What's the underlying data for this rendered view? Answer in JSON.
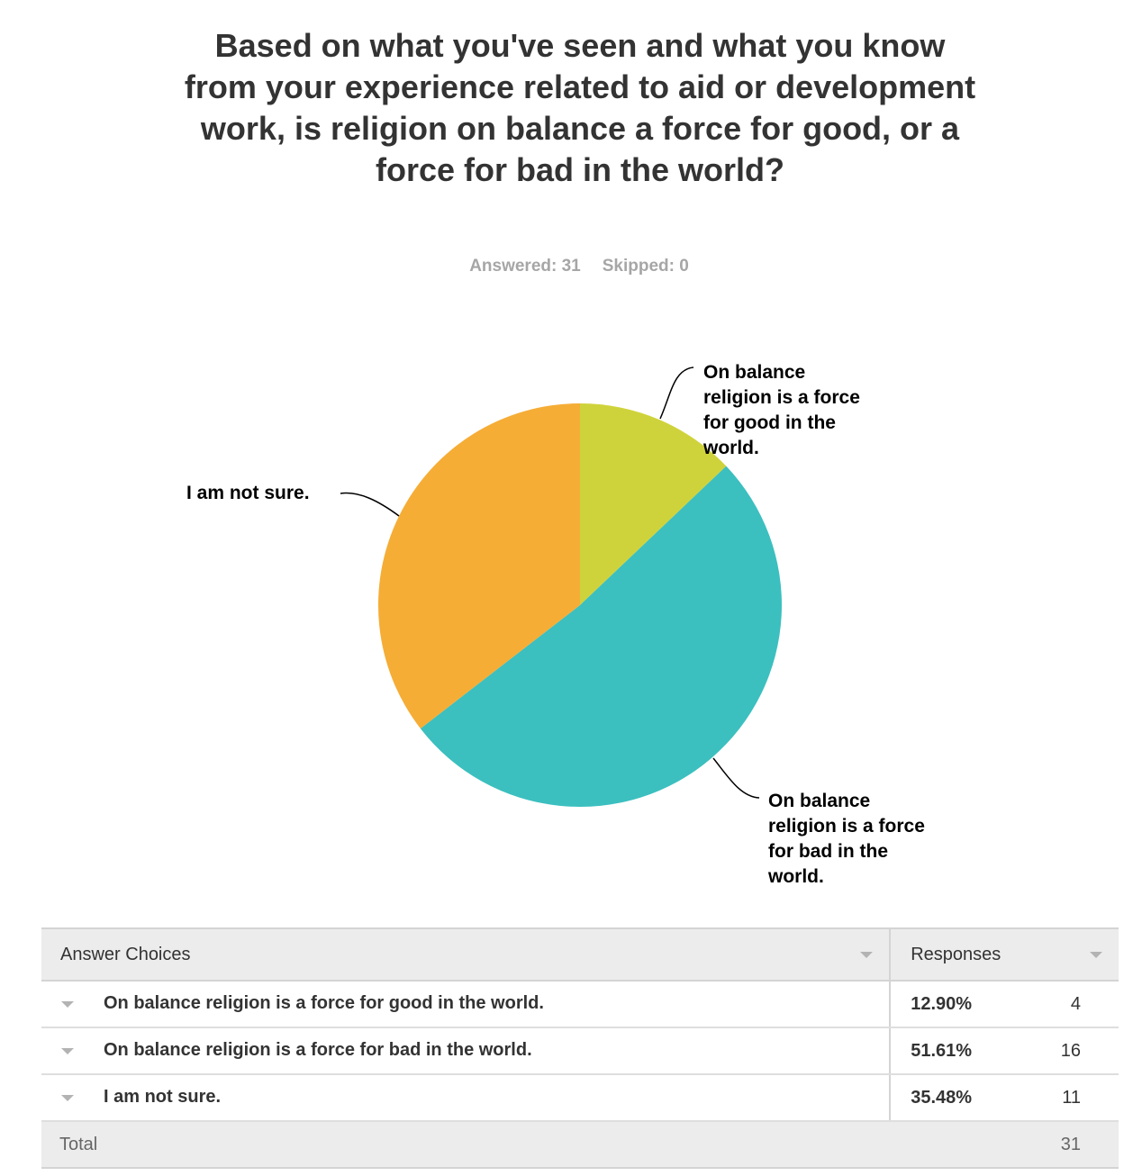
{
  "question": {
    "title": "Based on what you've seen and what you know from your experience related to aid or development work, is religion on balance a force for good, or a force for bad in the world?",
    "answered_label": "Answered: 31",
    "skipped_label": "Skipped: 0"
  },
  "chart_data": {
    "type": "pie",
    "categories": [
      "On balance religion is a force for good in the world.",
      "On balance religion is a force for bad in the world.",
      "I am not sure."
    ],
    "values": [
      12.9,
      51.61,
      35.48
    ],
    "counts": [
      4,
      16,
      11
    ],
    "colors": [
      "#cfd33b",
      "#3cbfbf",
      "#f5ad36"
    ],
    "start_angle": "12 o'clock",
    "direction": "clockwise",
    "slice_labels": [
      [
        "On balance",
        "religion is a force",
        "for good in the",
        "world."
      ],
      [
        "On balance",
        "religion is a force",
        "for bad in the",
        "world."
      ],
      [
        "I am not sure."
      ]
    ]
  },
  "table": {
    "headers": {
      "choice": "Answer Choices",
      "responses": "Responses"
    },
    "rows": [
      {
        "choice": "On balance religion is a force for good in the world.",
        "percent": "12.90%",
        "count": "4"
      },
      {
        "choice": "On balance religion is a force for bad in the world.",
        "percent": "51.61%",
        "count": "16"
      },
      {
        "choice": "I am not sure.",
        "percent": "35.48%",
        "count": "11"
      }
    ],
    "total_label": "Total",
    "total_count": "31"
  }
}
